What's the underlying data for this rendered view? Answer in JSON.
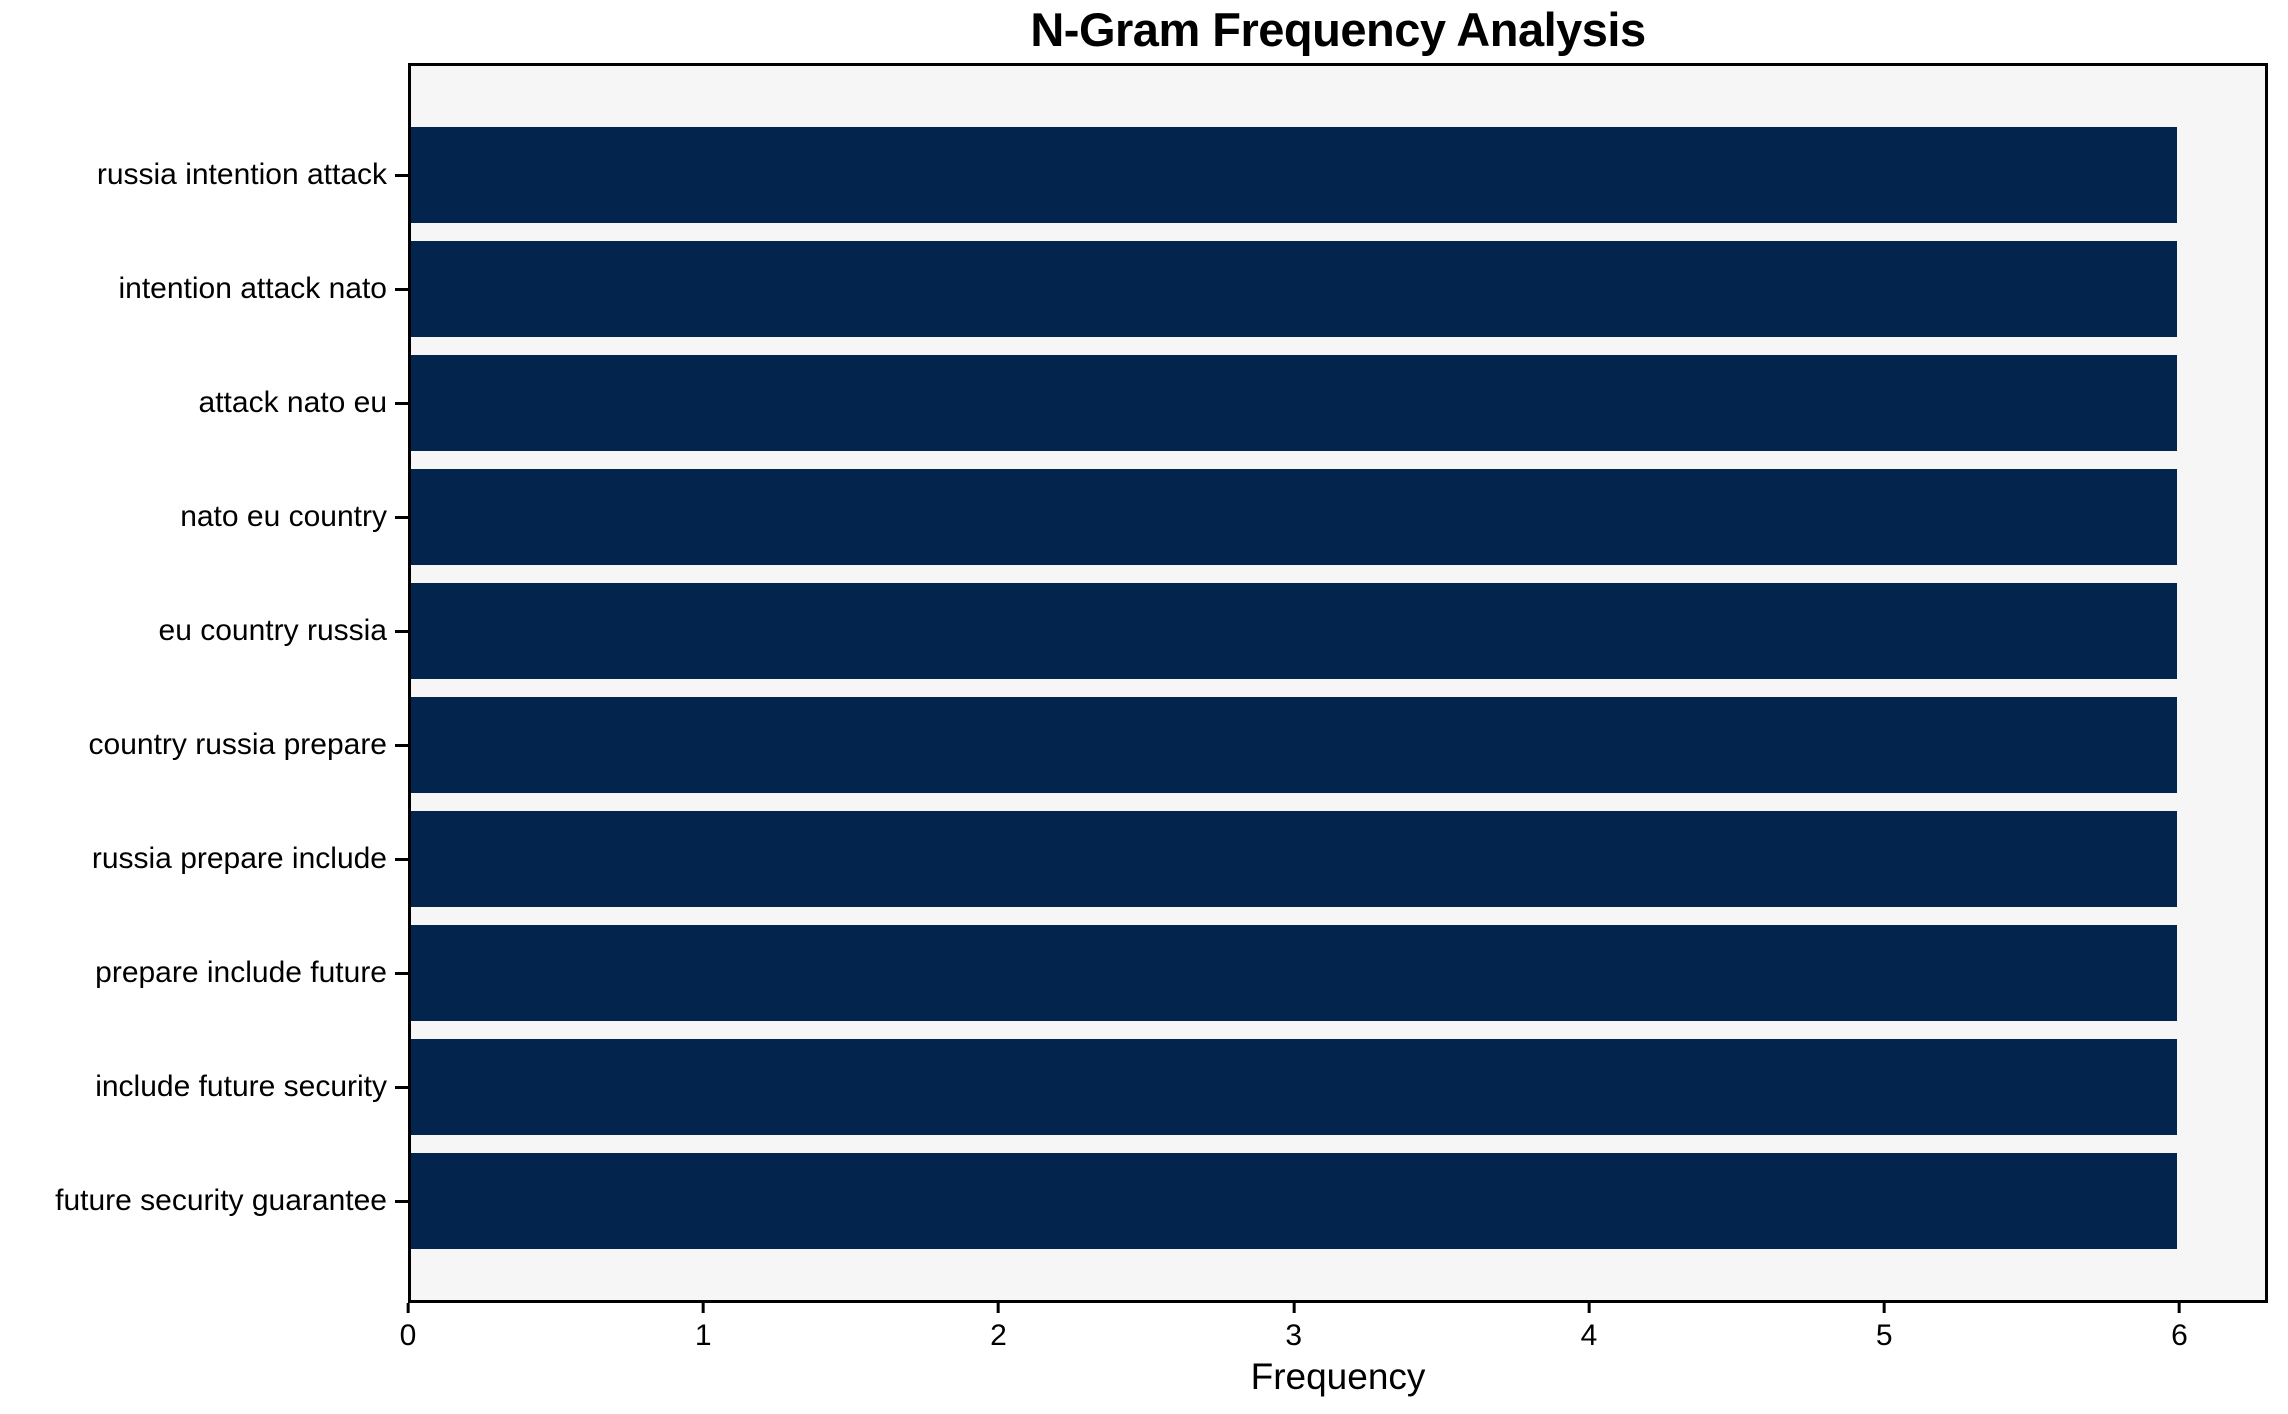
{
  "chart_data": {
    "type": "bar",
    "orientation": "horizontal",
    "title": "N-Gram Frequency Analysis",
    "xlabel": "Frequency",
    "ylabel": "",
    "categories": [
      "russia intention attack",
      "intention attack nato",
      "attack nato eu",
      "nato eu country",
      "eu country russia",
      "country russia prepare",
      "russia prepare include",
      "prepare include future",
      "include future security",
      "future security guarantee"
    ],
    "values": [
      6,
      6,
      6,
      6,
      6,
      6,
      6,
      6,
      6,
      6
    ],
    "xticks": [
      0,
      1,
      2,
      3,
      4,
      5,
      6
    ],
    "xlim": [
      0,
      6.3
    ],
    "grid": false,
    "legend": null,
    "bar_height_fraction": 0.84,
    "colors": {
      "bar": "#03244d",
      "plot_background": "#f6f6f7",
      "figure_background": "#ffffff",
      "spine": "#000000",
      "text": "#000000"
    }
  }
}
